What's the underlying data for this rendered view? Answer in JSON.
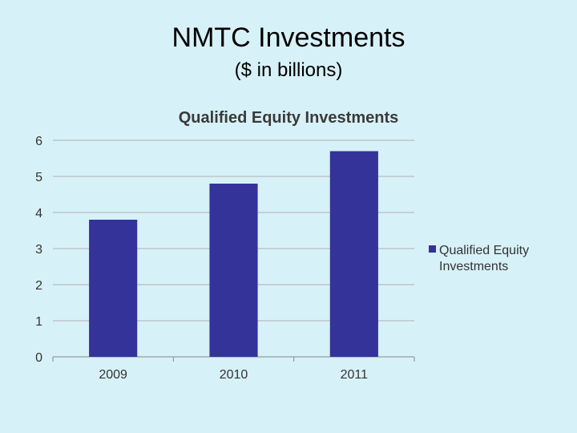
{
  "slide": {
    "title": "NMTC Investments",
    "subtitle": "($ in billions)"
  },
  "colors": {
    "background": "#d7f1f8",
    "bar": "#333399",
    "grid": "#b0b0b0"
  },
  "chart_data": {
    "type": "bar",
    "title": "Qualified Equity Investments",
    "categories": [
      "2009",
      "2010",
      "2011"
    ],
    "series": [
      {
        "name": "Qualified Equity Investments",
        "values": [
          3.8,
          4.8,
          5.7
        ]
      }
    ],
    "ylim": [
      0,
      6
    ],
    "yticks": [
      "0",
      "1",
      "2",
      "3",
      "4",
      "5",
      "6"
    ],
    "grid": true,
    "legend_position": "right",
    "legend_lines": [
      "Qualified Equity",
      "Investments"
    ]
  }
}
